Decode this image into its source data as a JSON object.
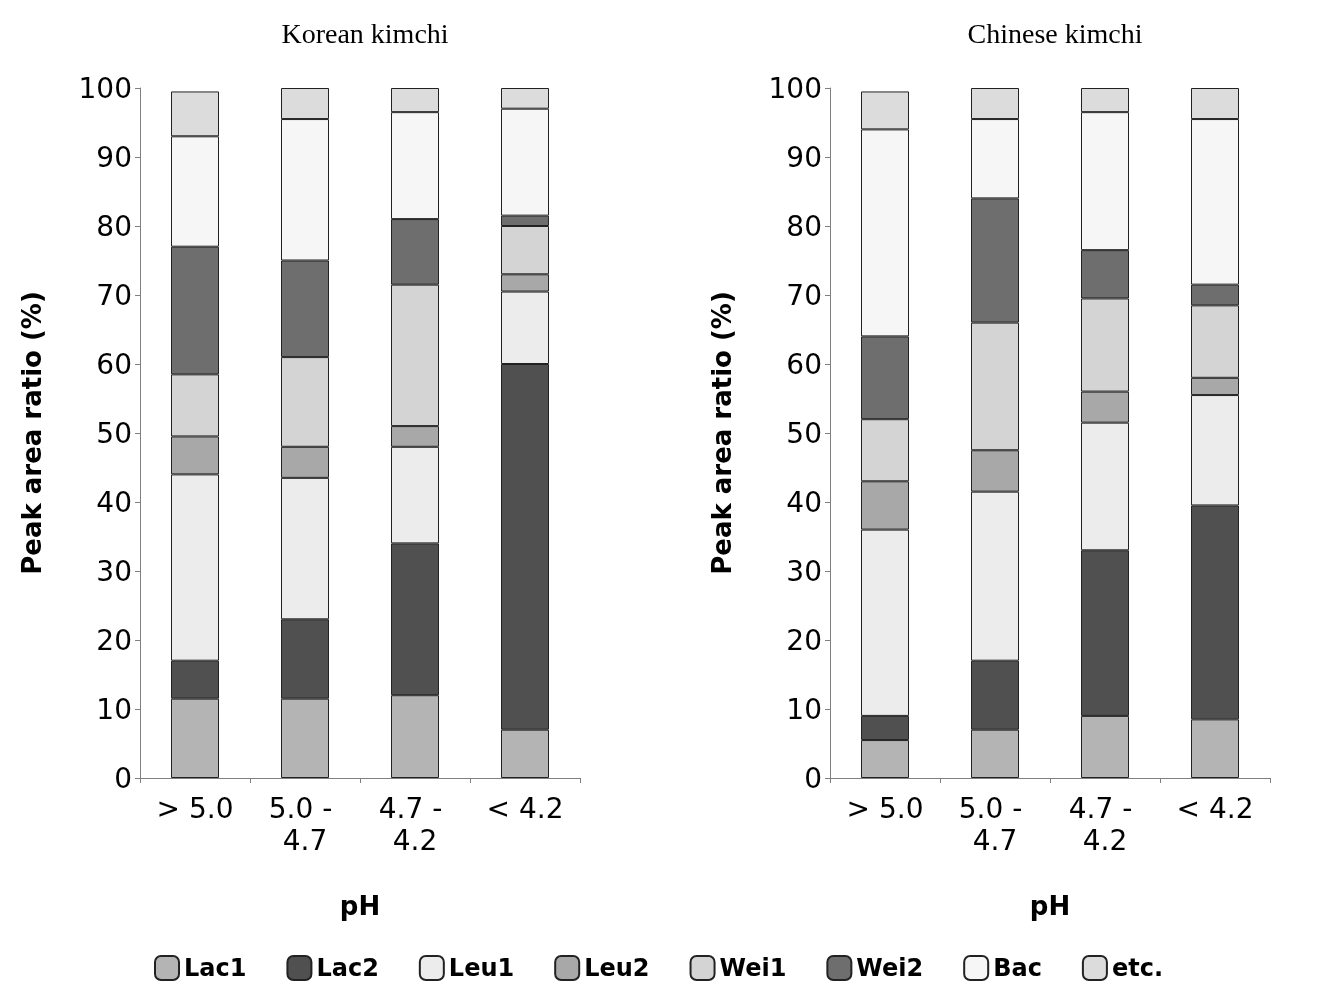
{
  "chart_data": [
    {
      "type": "bar",
      "title": "Korean kimchi",
      "xlabel": "pH",
      "ylabel": "Peak area ratio (%)",
      "categories": [
        "> 5.0",
        "5.0 - 4.7",
        "4.7 - 4.2",
        "< 4.2"
      ],
      "stacked": true,
      "ylim": [
        0,
        100
      ],
      "yticks": [
        0,
        10,
        20,
        30,
        40,
        50,
        60,
        70,
        80,
        90,
        100
      ],
      "grid": false,
      "legend": "bottom",
      "series": [
        {
          "name": "Lac1",
          "color": "#b4b4b4",
          "values": [
            11.5,
            11.5,
            12,
            7
          ]
        },
        {
          "name": "Lac2",
          "color": "#505050",
          "values": [
            5.5,
            11.5,
            22,
            53
          ]
        },
        {
          "name": "Leu1",
          "color": "#ececec",
          "values": [
            27,
            20.5,
            14,
            10.5
          ]
        },
        {
          "name": "Leu2",
          "color": "#a8a8a8",
          "values": [
            5.5,
            4.5,
            3,
            2.5
          ]
        },
        {
          "name": "Wei1",
          "color": "#d4d4d4",
          "values": [
            9,
            13,
            20.5,
            7
          ]
        },
        {
          "name": "Wei2",
          "color": "#6e6e6e",
          "values": [
            18.5,
            14,
            9.5,
            1.5
          ]
        },
        {
          "name": "Bac",
          "color": "#f6f6f6",
          "values": [
            16,
            20.5,
            15.5,
            15.5
          ]
        },
        {
          "name": "etc.",
          "color": "#dcdcdc",
          "values": [
            6.5,
            4.5,
            3.5,
            3
          ]
        }
      ]
    },
    {
      "type": "bar",
      "title": "Chinese kimchi",
      "xlabel": "pH",
      "ylabel": "Peak area ratio (%)",
      "categories": [
        "> 5.0",
        "5.0 - 4.7",
        "4.7 - 4.2",
        "< 4.2"
      ],
      "stacked": true,
      "ylim": [
        0,
        100
      ],
      "yticks": [
        0,
        10,
        20,
        30,
        40,
        50,
        60,
        70,
        80,
        90,
        100
      ],
      "grid": false,
      "legend": "bottom",
      "series": [
        {
          "name": "Lac1",
          "color": "#b4b4b4",
          "values": [
            5.5,
            7,
            9,
            8.5
          ]
        },
        {
          "name": "Lac2",
          "color": "#505050",
          "values": [
            3.5,
            10,
            24,
            31
          ]
        },
        {
          "name": "Leu1",
          "color": "#ececec",
          "values": [
            27,
            24.5,
            18.5,
            16
          ]
        },
        {
          "name": "Leu2",
          "color": "#a8a8a8",
          "values": [
            7,
            6,
            4.5,
            2.5
          ]
        },
        {
          "name": "Wei1",
          "color": "#d4d4d4",
          "values": [
            9,
            18.5,
            13.5,
            10.5
          ]
        },
        {
          "name": "Wei2",
          "color": "#6e6e6e",
          "values": [
            12,
            18,
            7,
            3
          ]
        },
        {
          "name": "Bac",
          "color": "#f6f6f6",
          "values": [
            30,
            11.5,
            20,
            24
          ]
        },
        {
          "name": "etc.",
          "color": "#dcdcdc",
          "values": [
            5.5,
            4.5,
            3.5,
            4.5
          ]
        }
      ]
    }
  ]
}
